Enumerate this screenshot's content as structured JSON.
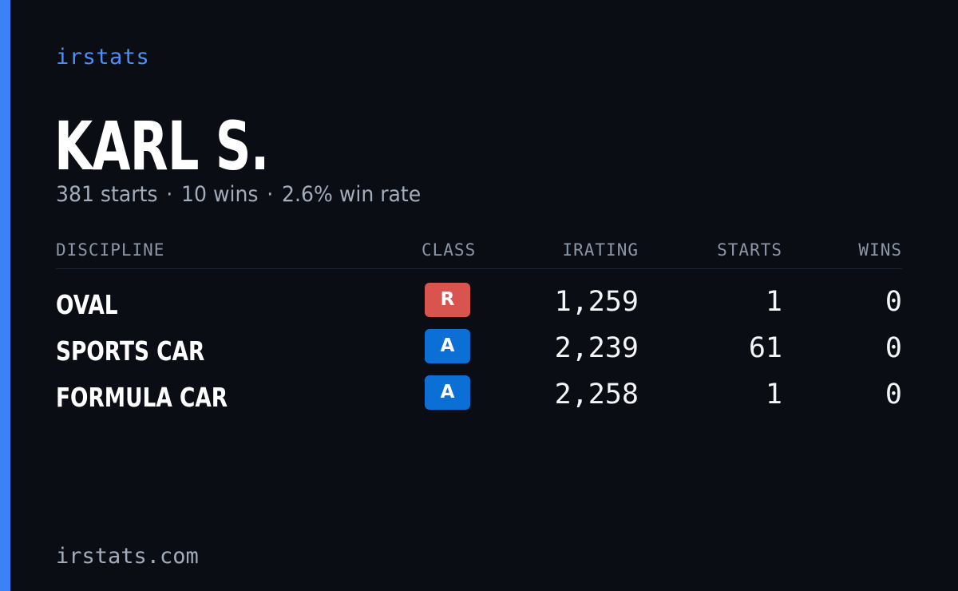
{
  "brand": "irstats",
  "player": {
    "name": "KARL S.",
    "summary": {
      "starts": "381 starts",
      "wins": "10 wins",
      "win_rate": "2.6% win rate",
      "separator": "·"
    }
  },
  "table": {
    "headers": {
      "discipline": "DISCIPLINE",
      "class": "CLASS",
      "irating": "IRATING",
      "starts": "STARTS",
      "wins": "WINS"
    },
    "rows": [
      {
        "discipline": "OVAL",
        "class": "R",
        "class_color": "#d9534f",
        "irating": "1,259",
        "starts": "1",
        "wins": "0"
      },
      {
        "discipline": "SPORTS CAR",
        "class": "A",
        "class_color": "#0c6fd6",
        "irating": "2,239",
        "starts": "61",
        "wins": "0"
      },
      {
        "discipline": "FORMULA CAR",
        "class": "A",
        "class_color": "#0c6fd6",
        "irating": "2,258",
        "starts": "1",
        "wins": "0"
      }
    ]
  },
  "footer": "irstats.com",
  "colors": {
    "background": "#0a0d14",
    "accent": "#3b82f6",
    "brand_text": "#4d8ef7",
    "muted_text": "#a3acbb"
  }
}
